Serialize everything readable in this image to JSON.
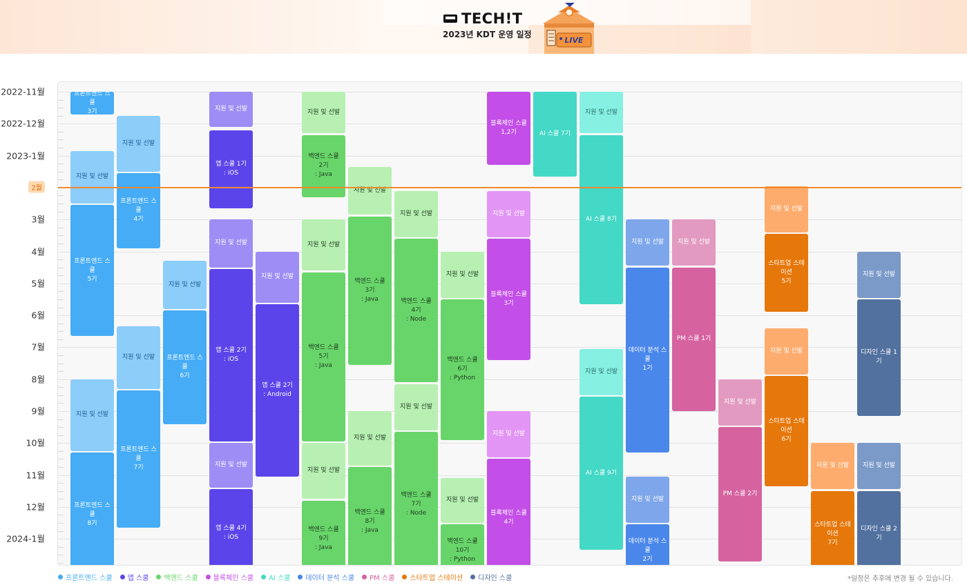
{
  "header": {
    "logo_text": "TECH!T",
    "subtitle": "2023년 KDT 운영 일정",
    "live_badge": "LIVE"
  },
  "months": [
    "2022-11월",
    "2022-12월",
    "2023-1월",
    "2월",
    "3월",
    "4월",
    "5월",
    "6월",
    "7월",
    "8월",
    "9월",
    "10월",
    "11월",
    "12월",
    "2024-1월"
  ],
  "current_month": "2월",
  "colors": {
    "frontend": "#45acf5",
    "frontend_apply": "#8ccdfa",
    "app": "#5b45ea",
    "app_apply": "#9e8df5",
    "backend": "#68d56a",
    "backend_apply": "#b8f0b3",
    "blockchain": "#c34ee8",
    "blockchain_apply": "#e295f5",
    "ai": "#44d8c6",
    "ai_apply": "#86f0e2",
    "data": "#4a87ea",
    "data_apply": "#7ea6ea",
    "pm": "#d663a0",
    "pm_apply": "#e29ac0",
    "startup": "#e6770a",
    "startup_apply": "#fdac6e",
    "design": "#52719f",
    "design_apply": "#7b9ac8",
    "now_line": "#f08a2c"
  },
  "schedule": [
    {
      "col": 0,
      "start": 0,
      "end": 0.72,
      "type": "frontend",
      "label": "프론트엔드 스쿨\n3기"
    },
    {
      "col": 0,
      "start": 1.85,
      "end": 3.5,
      "type": "frontend_apply",
      "label": "지원 및 선발"
    },
    {
      "col": 0,
      "start": 3.55,
      "end": 7.65,
      "type": "frontend",
      "label": "프론트엔드 스쿨\n5기"
    },
    {
      "col": 0,
      "start": 9.0,
      "end": 11.25,
      "type": "frontend_apply",
      "label": "지원 및 선발"
    },
    {
      "col": 0,
      "start": 11.3,
      "end": 15.2,
      "type": "frontend",
      "label": "프론트엔드 스쿨\n8기"
    },
    {
      "col": 1,
      "start": 0.75,
      "end": 2.5,
      "type": "frontend_apply",
      "label": "지원 및 선발"
    },
    {
      "col": 1,
      "start": 2.55,
      "end": 4.9,
      "type": "frontend",
      "label": "프론트엔드 스쿨\n4기"
    },
    {
      "col": 1,
      "start": 7.35,
      "end": 9.3,
      "type": "frontend_apply",
      "label": "지원 및 선발"
    },
    {
      "col": 1,
      "start": 9.35,
      "end": 13.65,
      "type": "frontend",
      "label": "프론트엔드 스쿨\n7기"
    },
    {
      "col": 2,
      "start": 5.3,
      "end": 6.8,
      "type": "frontend_apply",
      "label": "지원 및 선발"
    },
    {
      "col": 2,
      "start": 6.85,
      "end": 10.4,
      "type": "frontend",
      "label": "프론트엔드 스쿨\n6기"
    },
    {
      "col": 3,
      "start": 0,
      "end": 1.1,
      "type": "app_apply",
      "label": "지원 및 선발"
    },
    {
      "col": 3,
      "start": 1.2,
      "end": 3.65,
      "type": "app",
      "label": "앱 스쿨 1기\n: iOS"
    },
    {
      "col": 3,
      "start": 4.0,
      "end": 5.5,
      "type": "app_apply",
      "label": "지원 및 선발"
    },
    {
      "col": 3,
      "start": 5.55,
      "end": 10.95,
      "type": "app",
      "label": "앱 스쿨 2기\n: iOS"
    },
    {
      "col": 3,
      "start": 11.0,
      "end": 12.4,
      "type": "app_apply",
      "label": "지원 및 선발"
    },
    {
      "col": 3,
      "start": 12.45,
      "end": 15.2,
      "type": "app",
      "label": "앱 스쿨 4기\n: iOS"
    },
    {
      "col": 4,
      "start": 5.0,
      "end": 6.6,
      "type": "app_apply",
      "label": "지원 및 선발"
    },
    {
      "col": 4,
      "start": 6.65,
      "end": 12.05,
      "type": "app",
      "label": "앱 스쿨 2기\n: Android"
    },
    {
      "col": 5,
      "start": 0,
      "end": 1.3,
      "type": "backend_apply",
      "label": "지원 및 선발"
    },
    {
      "col": 5,
      "start": 1.35,
      "end": 3.3,
      "type": "backend",
      "label": "백엔드 스쿨\n2기\n: Java"
    },
    {
      "col": 5,
      "start": 4.0,
      "end": 5.6,
      "type": "backend_apply",
      "label": "지원 및 선발"
    },
    {
      "col": 5,
      "start": 5.65,
      "end": 10.95,
      "type": "backend",
      "label": "백엔드 스쿨\n5기\n: Java"
    },
    {
      "col": 5,
      "start": 11.0,
      "end": 12.75,
      "type": "backend_apply",
      "label": "지원 및 선발"
    },
    {
      "col": 5,
      "start": 12.8,
      "end": 15.2,
      "type": "backend",
      "label": "백엔드 스쿨\n9기\n: Java"
    },
    {
      "col": 6,
      "start": 2.35,
      "end": 3.85,
      "type": "backend_apply",
      "label": "지원 및 선발"
    },
    {
      "col": 6,
      "start": 3.9,
      "end": 8.55,
      "type": "backend",
      "label": "백엔드 스쿨\n3기\n: Java"
    },
    {
      "col": 6,
      "start": 10.0,
      "end": 11.7,
      "type": "backend_apply",
      "label": "지원 및 선발"
    },
    {
      "col": 6,
      "start": 11.75,
      "end": 15.2,
      "type": "backend",
      "label": "백엔드 스쿨\n8기\n: Java"
    },
    {
      "col": 7,
      "start": 3.1,
      "end": 4.55,
      "type": "backend_apply",
      "label": "지원 및 선발"
    },
    {
      "col": 7,
      "start": 4.6,
      "end": 9.1,
      "type": "backend",
      "label": "백엔드 스쿨\n4기\n: Node"
    },
    {
      "col": 7,
      "start": 9.15,
      "end": 10.6,
      "type": "backend_apply",
      "label": "지원 및 선발"
    },
    {
      "col": 7,
      "start": 10.65,
      "end": 15.2,
      "type": "backend",
      "label": "백엔드 스쿨\n7기\n: Node"
    },
    {
      "col": 8,
      "start": 5.0,
      "end": 6.45,
      "type": "backend_apply",
      "label": "지원 및 선발"
    },
    {
      "col": 8,
      "start": 6.5,
      "end": 10.9,
      "type": "backend",
      "label": "백엔드 스쿨\n6기\n: Python"
    },
    {
      "col": 8,
      "start": 12.1,
      "end": 13.5,
      "type": "backend_apply",
      "label": "지원 및 선발"
    },
    {
      "col": 8,
      "start": 13.55,
      "end": 15.2,
      "type": "backend",
      "label": "백엔드 스쿨\n10기\n: Python"
    },
    {
      "col": 9,
      "start": 0,
      "end": 2.3,
      "type": "blockchain",
      "label": "블록체인 스쿨\n1,2기"
    },
    {
      "col": 9,
      "start": 3.1,
      "end": 4.55,
      "type": "blockchain_apply",
      "label": "지원 및 선발"
    },
    {
      "col": 9,
      "start": 4.6,
      "end": 8.4,
      "type": "blockchain",
      "label": "블록체인 스쿨\n3기"
    },
    {
      "col": 9,
      "start": 10.0,
      "end": 11.45,
      "type": "blockchain_apply",
      "label": "지원 및 선발"
    },
    {
      "col": 9,
      "start": 11.5,
      "end": 15.2,
      "type": "blockchain",
      "label": "블록체인 스쿨\n4기"
    },
    {
      "col": 10,
      "start": 0,
      "end": 2.65,
      "type": "ai",
      "label": "AI 스쿨 7기"
    },
    {
      "col": 11,
      "start": 0,
      "end": 1.3,
      "type": "ai_apply",
      "label": "지원 및 선발"
    },
    {
      "col": 11,
      "start": 1.35,
      "end": 6.65,
      "type": "ai",
      "label": "AI 스쿨 8기"
    },
    {
      "col": 11,
      "start": 8.05,
      "end": 9.5,
      "type": "ai_apply",
      "label": "지원 및 선발"
    },
    {
      "col": 11,
      "start": 9.55,
      "end": 14.35,
      "type": "ai",
      "label": "AI 스쿨 9기"
    },
    {
      "col": 12,
      "start": 4.0,
      "end": 5.45,
      "type": "data_apply",
      "label": "지원 및 선발"
    },
    {
      "col": 12,
      "start": 5.5,
      "end": 11.3,
      "type": "data",
      "label": "데이터 분석 스쿨\n1기"
    },
    {
      "col": 12,
      "start": 12.05,
      "end": 13.5,
      "type": "data_apply",
      "label": "지원 및 선발"
    },
    {
      "col": 12,
      "start": 13.55,
      "end": 15.2,
      "type": "data",
      "label": "데이터 분석 스쿨\n2기"
    },
    {
      "col": 13,
      "start": 4.0,
      "end": 5.45,
      "type": "pm_apply",
      "label": "지원 및 선발"
    },
    {
      "col": 13,
      "start": 5.5,
      "end": 10.0,
      "type": "pm",
      "label": "PM 스쿨 1기"
    },
    {
      "col": 14,
      "start": 9.0,
      "end": 10.45,
      "type": "pm_apply",
      "label": "지원 및 선발"
    },
    {
      "col": 14,
      "start": 10.5,
      "end": 14.7,
      "type": "pm",
      "label": "PM 스쿨 2기"
    },
    {
      "col": 15,
      "start": 2.95,
      "end": 4.4,
      "type": "startup_apply",
      "label": "지원 및 선발"
    },
    {
      "col": 15,
      "start": 4.45,
      "end": 6.9,
      "type": "startup",
      "label": "스타트업 스테이션\n5기"
    },
    {
      "col": 15,
      "start": 7.4,
      "end": 8.85,
      "type": "startup_apply",
      "label": "지원 및 선발"
    },
    {
      "col": 15,
      "start": 8.9,
      "end": 12.35,
      "type": "startup",
      "label": "스타트업 스테이션\n6기"
    },
    {
      "col": 16,
      "start": 11.0,
      "end": 12.45,
      "type": "startup_apply",
      "label": "지원 및 선발"
    },
    {
      "col": 16,
      "start": 12.5,
      "end": 15.2,
      "type": "startup",
      "label": "스타트업 스테이션\n7기"
    },
    {
      "col": 17,
      "start": 5.0,
      "end": 6.45,
      "type": "design_apply",
      "label": "지원 및 선발"
    },
    {
      "col": 17,
      "start": 6.5,
      "end": 10.15,
      "type": "design",
      "label": "디자인 스쿨 1기"
    },
    {
      "col": 17,
      "start": 11.0,
      "end": 12.45,
      "type": "design_apply",
      "label": "지원 및 선발"
    },
    {
      "col": 17,
      "start": 12.5,
      "end": 15.2,
      "type": "design",
      "label": "디자인 스쿨 2기"
    }
  ],
  "legend": [
    {
      "label": "프론트엔드 스쿨",
      "color": "#45acf5"
    },
    {
      "label": "앱 스쿨",
      "color": "#5b45ea"
    },
    {
      "label": "백엔드 스쿨",
      "color": "#68d56a"
    },
    {
      "label": "블록체인 스쿨",
      "color": "#c34ee8"
    },
    {
      "label": "AI 스쿨",
      "color": "#44d8c6"
    },
    {
      "label": "데이터 분석 스쿨",
      "color": "#4a87ea"
    },
    {
      "label": "PM 스쿨",
      "color": "#d663a0"
    },
    {
      "label": "스타트업 스테이션",
      "color": "#e6770a"
    },
    {
      "label": "디자인 스쿨",
      "color": "#52719f"
    }
  ],
  "footnote": "*일정은 추후에 변경 될 수 있습니다."
}
